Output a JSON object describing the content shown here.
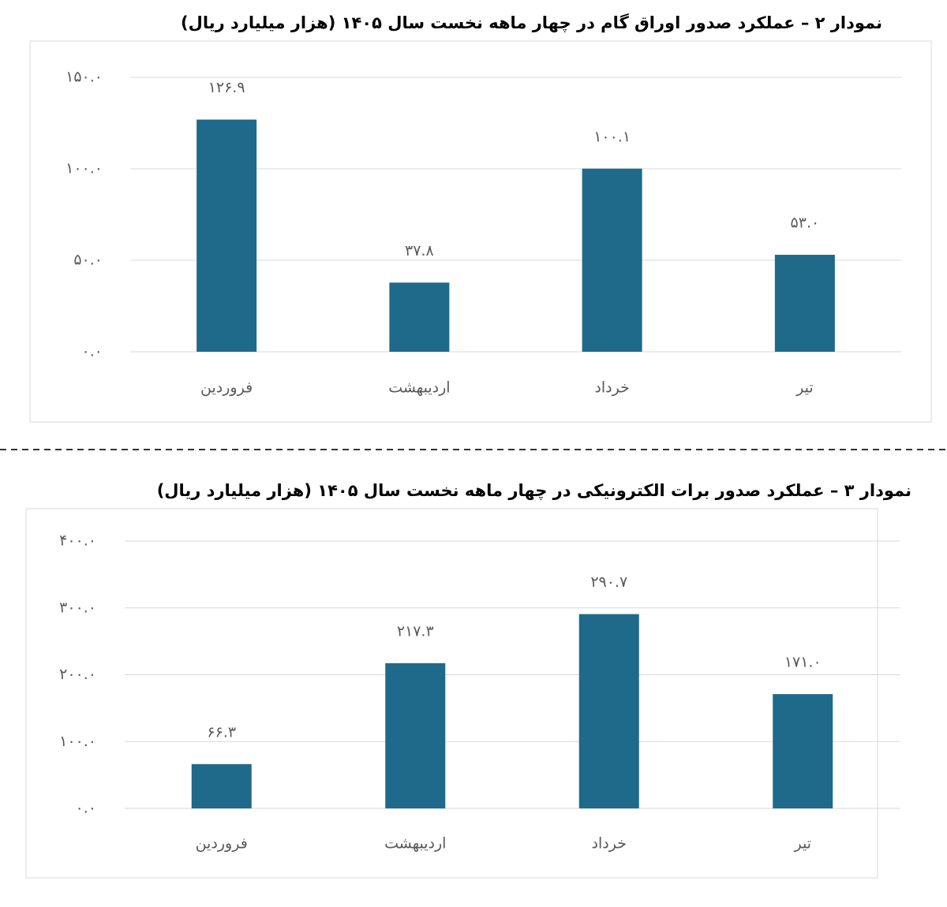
{
  "chart_data": [
    {
      "type": "bar",
      "title": "نمودار ۲ – عملکرد صدور اوراق گام در چهار ماهه نخست سال ۱۴۰۵ (هزار میلیارد ریال)",
      "categories": [
        "فروردین",
        "اردیبهشت",
        "خرداد",
        "تیر"
      ],
      "values": [
        126.9,
        37.8,
        100.1,
        53.0
      ],
      "value_labels": [
        "۱۲۶.۹",
        "۳۷.۸",
        "۱۰۰.۱",
        "۵۳.۰"
      ],
      "color": "#1f6a8a",
      "ylim": [
        0,
        150
      ],
      "yticks": [
        {
          "value": 0,
          "label": "۰.۰"
        },
        {
          "value": 50,
          "label": "۵۰.۰"
        },
        {
          "value": 100,
          "label": "۱۰۰.۰"
        },
        {
          "value": 150,
          "label": "۱۵۰.۰"
        }
      ],
      "grid": true
    },
    {
      "type": "bar",
      "title": "نمودار ۳ – عملکرد صدور برات الکترونیکی در چهار ماهه نخست سال ۱۴۰۵ (هزار میلیارد ریال)",
      "categories": [
        "فروردین",
        "اردیبهشت",
        "خرداد",
        "تیر"
      ],
      "values": [
        66.3,
        217.3,
        290.7,
        171.0
      ],
      "value_labels": [
        "۶۶.۳",
        "۲۱۷.۳",
        "۲۹۰.۷",
        "۱۷۱.۰"
      ],
      "color": "#1f6a8a",
      "ylim": [
        0,
        400
      ],
      "yticks": [
        {
          "value": 0,
          "label": "۰.۰"
        },
        {
          "value": 100,
          "label": "۱۰۰.۰"
        },
        {
          "value": 200,
          "label": "۲۰۰.۰"
        },
        {
          "value": 300,
          "label": "۳۰۰.۰"
        },
        {
          "value": 400,
          "label": "۴۰۰.۰"
        }
      ],
      "grid": true
    }
  ]
}
